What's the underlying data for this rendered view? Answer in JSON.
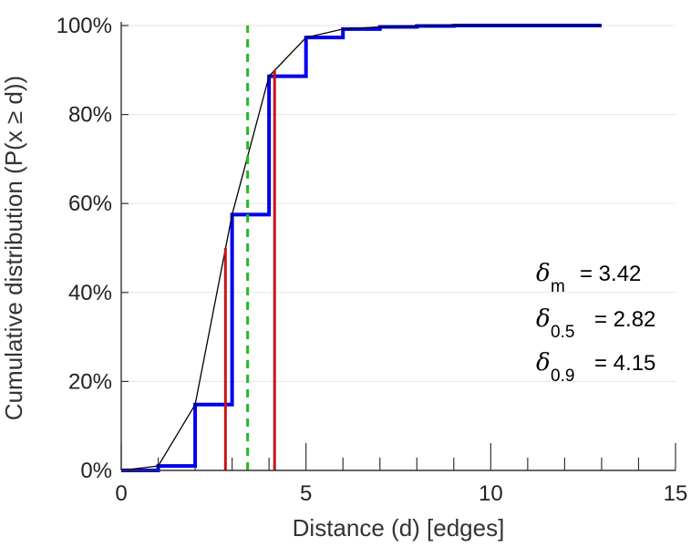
{
  "chart_data": {
    "type": "line",
    "title": "",
    "xlabel": "Distance (d) [edges]",
    "ylabel": "Cumulative distribution (P(x ≥ d))",
    "xlim": [
      0,
      15
    ],
    "ylim": [
      0,
      100
    ],
    "x_ticks": [
      "0",
      "5",
      "10",
      "15"
    ],
    "y_ticks": [
      "0%",
      "20%",
      "40%",
      "60%",
      "80%",
      "100%"
    ],
    "grid": "horizontal",
    "colors": {
      "step": "#0000ee",
      "line": "#000000",
      "marker_red": "#cc1111",
      "mean_green": "#22bb22"
    },
    "series": [
      {
        "style": "step",
        "x": [
          0,
          1,
          2,
          3,
          4,
          5,
          6,
          7,
          8,
          9,
          10,
          11,
          12,
          13
        ],
        "y": [
          0,
          1,
          14.8,
          57.5,
          88.6,
          97.3,
          99.2,
          99.7,
          99.9,
          100,
          100,
          100,
          100,
          100
        ]
      },
      {
        "style": "line",
        "x": [
          0,
          1,
          2,
          3,
          4,
          5,
          6,
          7,
          8,
          9,
          10,
          11,
          12,
          13
        ],
        "y": [
          0,
          1,
          14.8,
          57.5,
          88.6,
          97.3,
          99.2,
          99.7,
          99.9,
          100,
          100,
          100,
          100,
          100
        ]
      }
    ],
    "vertical_lines": [
      {
        "x": 2.82,
        "y_top": 50,
        "color": "red",
        "style": "solid"
      },
      {
        "x": 4.15,
        "y_top": 90,
        "color": "red",
        "style": "solid"
      },
      {
        "x": 3.42,
        "y_top": 100,
        "color": "green",
        "style": "dashed"
      }
    ],
    "annotations": [
      {
        "symbol": "δ",
        "sub": "m",
        "text": "= 3.42"
      },
      {
        "symbol": "δ",
        "sub": "0.5",
        "text": "= 2.82"
      },
      {
        "symbol": "δ",
        "sub": "0.9",
        "text": "= 4.15"
      }
    ]
  }
}
